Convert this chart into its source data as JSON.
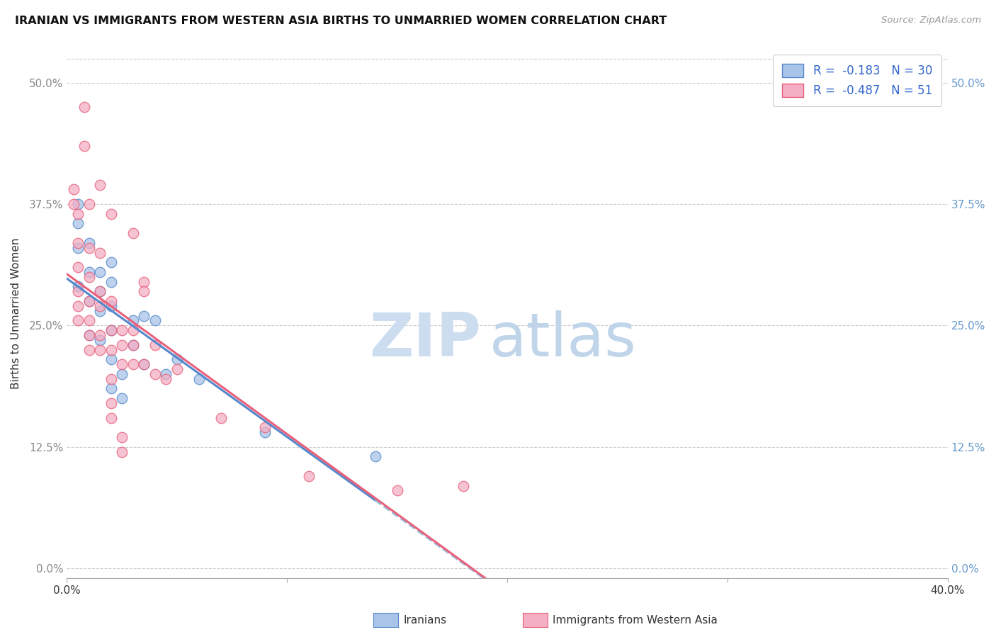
{
  "title": "IRANIAN VS IMMIGRANTS FROM WESTERN ASIA BIRTHS TO UNMARRIED WOMEN CORRELATION CHART",
  "source": "Source: ZipAtlas.com",
  "ylabel": "Births to Unmarried Women",
  "legend_label1": "Iranians",
  "legend_label2": "Immigrants from Western Asia",
  "r1": -0.183,
  "n1": 30,
  "r2": -0.487,
  "n2": 51,
  "color_blue": "#a8c4e8",
  "color_pink": "#f4afc4",
  "color_blue_line": "#5588cc",
  "color_pink_line": "#e8607a",
  "color_dashed": "#99bbdd",
  "blue_scatter": [
    [
      0.5,
      37.5
    ],
    [
      0.5,
      35.5
    ],
    [
      0.5,
      33.0
    ],
    [
      0.5,
      29.0
    ],
    [
      1.0,
      33.5
    ],
    [
      1.0,
      30.5
    ],
    [
      1.0,
      27.5
    ],
    [
      1.0,
      24.0
    ],
    [
      1.5,
      30.5
    ],
    [
      1.5,
      28.5
    ],
    [
      1.5,
      26.5
    ],
    [
      1.5,
      23.5
    ],
    [
      2.0,
      31.5
    ],
    [
      2.0,
      29.5
    ],
    [
      2.0,
      27.0
    ],
    [
      2.0,
      24.5
    ],
    [
      2.0,
      21.5
    ],
    [
      2.0,
      18.5
    ],
    [
      2.5,
      20.0
    ],
    [
      2.5,
      17.5
    ],
    [
      3.0,
      25.5
    ],
    [
      3.0,
      23.0
    ],
    [
      3.5,
      26.0
    ],
    [
      3.5,
      21.0
    ],
    [
      4.0,
      25.5
    ],
    [
      4.5,
      20.0
    ],
    [
      5.0,
      21.5
    ],
    [
      6.0,
      19.5
    ],
    [
      9.0,
      14.0
    ],
    [
      14.0,
      11.5
    ]
  ],
  "pink_scatter": [
    [
      0.3,
      39.0
    ],
    [
      0.3,
      37.5
    ],
    [
      0.5,
      36.5
    ],
    [
      0.5,
      33.5
    ],
    [
      0.5,
      31.0
    ],
    [
      0.5,
      28.5
    ],
    [
      0.5,
      27.0
    ],
    [
      0.5,
      25.5
    ],
    [
      0.8,
      47.5
    ],
    [
      0.8,
      43.5
    ],
    [
      1.0,
      37.5
    ],
    [
      1.0,
      33.0
    ],
    [
      1.0,
      30.0
    ],
    [
      1.0,
      27.5
    ],
    [
      1.0,
      25.5
    ],
    [
      1.0,
      24.0
    ],
    [
      1.0,
      22.5
    ],
    [
      1.5,
      39.5
    ],
    [
      1.5,
      32.5
    ],
    [
      1.5,
      28.5
    ],
    [
      1.5,
      27.0
    ],
    [
      1.5,
      24.0
    ],
    [
      1.5,
      22.5
    ],
    [
      2.0,
      36.5
    ],
    [
      2.0,
      27.5
    ],
    [
      2.0,
      24.5
    ],
    [
      2.0,
      22.5
    ],
    [
      2.0,
      19.5
    ],
    [
      2.0,
      17.0
    ],
    [
      2.0,
      15.5
    ],
    [
      2.5,
      24.5
    ],
    [
      2.5,
      23.0
    ],
    [
      2.5,
      21.0
    ],
    [
      2.5,
      13.5
    ],
    [
      2.5,
      12.0
    ],
    [
      3.0,
      34.5
    ],
    [
      3.0,
      24.5
    ],
    [
      3.0,
      23.0
    ],
    [
      3.0,
      21.0
    ],
    [
      3.5,
      29.5
    ],
    [
      3.5,
      28.5
    ],
    [
      3.5,
      21.0
    ],
    [
      4.0,
      23.0
    ],
    [
      4.0,
      20.0
    ],
    [
      4.5,
      19.5
    ],
    [
      5.0,
      20.5
    ],
    [
      7.0,
      15.5
    ],
    [
      9.0,
      14.5
    ],
    [
      11.0,
      9.5
    ],
    [
      15.0,
      8.0
    ],
    [
      18.0,
      8.5
    ]
  ],
  "xlim": [
    0.0,
    40.0
  ],
  "ylim": [
    -1.0,
    53.5
  ],
  "x_tick_vals": [
    0.0,
    10.0,
    20.0,
    30.0,
    40.0
  ],
  "x_tick_labels": [
    "0.0%",
    "",
    "",
    "",
    "40.0%"
  ],
  "y_tick_vals": [
    0.0,
    12.5,
    25.0,
    37.5,
    50.0
  ],
  "y_tick_labels": [
    "0.0%",
    "12.5%",
    "25.0%",
    "37.5%",
    "50.0%"
  ],
  "marker_size": 110,
  "watermark_zip": "ZIP",
  "watermark_atlas": "atlas",
  "watermark_color": "#ccddf0"
}
